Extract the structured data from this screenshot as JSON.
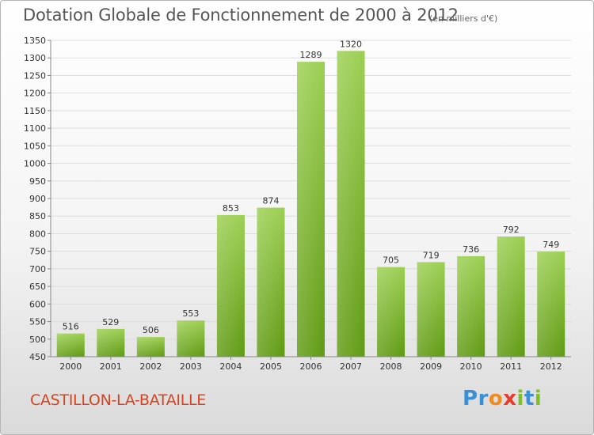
{
  "chart_data": {
    "type": "bar",
    "title": "Dotation Globale de Fonctionnement de 2000 à 2012",
    "subtitle": "(en milliers d'€)",
    "categories": [
      "2000",
      "2001",
      "2002",
      "2003",
      "2004",
      "2005",
      "2006",
      "2007",
      "2008",
      "2009",
      "2010",
      "2011",
      "2012"
    ],
    "values": [
      516,
      529,
      506,
      553,
      853,
      874,
      1289,
      1320,
      705,
      719,
      736,
      792,
      749
    ],
    "ylim": [
      450,
      1350
    ],
    "yticks": [
      450,
      500,
      550,
      600,
      650,
      700,
      750,
      800,
      850,
      900,
      950,
      1000,
      1050,
      1100,
      1150,
      1200,
      1250,
      1300,
      1350
    ],
    "grid": true,
    "colors": {
      "bar_top": "#9ccf52",
      "bar_bottom": "#5f9a12",
      "grid": "#dddddd",
      "axis": "#888888"
    }
  },
  "footer": {
    "commune": "CASTILLON-LA-BATAILLE"
  },
  "logo": {
    "text": "Proxiti",
    "letters": [
      "P",
      "r",
      "o",
      "x",
      "i",
      "t",
      "i"
    ],
    "colors": [
      "#3b8fd6",
      "#3b8fd6",
      "#f08a1c",
      "#e63b2e",
      "#7fbf2a",
      "#3b8fd6",
      "#7fbf2a"
    ]
  }
}
